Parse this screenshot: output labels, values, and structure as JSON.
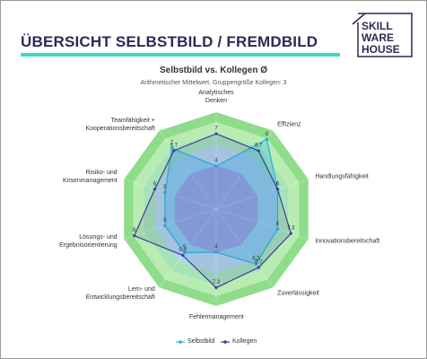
{
  "header": {
    "title": "ÜBERSICHT SELBSTBILD / FREMDBILD",
    "logo": [
      "SKILL",
      "WARE",
      "HOUSE"
    ]
  },
  "chart_data": {
    "type": "radar",
    "title": "Selbstbild vs. Kollegen Ø",
    "subtitle": "Arithmetischer Mittelwert. Gruppengröße Kollegen: 3",
    "categories": [
      "Analytisches Denken",
      "Effizienz",
      "Handlungsfähigkeit",
      "Innovationsbereitschaft",
      "Zuverlässigkeit",
      "Fehlermanagement",
      "Lern- und Entwicklungsbereitschaft",
      "Lösungs- und Ergebnisorientierung",
      "Risiko- und Krisenmanagement",
      "Teamfähigkeit + Kooperationsbereitschaft"
    ],
    "rlim": [
      0,
      9
    ],
    "series": [
      {
        "name": "Selbstbild",
        "color": "#2bb3e3",
        "values": [
          4,
          8,
          6,
          6,
          6.3,
          4,
          5,
          5,
          5,
          7
        ]
      },
      {
        "name": "Kollegen",
        "color": "#3b3a9a",
        "values": [
          7,
          6.7,
          6,
          7.3,
          6.7,
          7.3,
          5.3,
          8,
          6,
          6.7
        ]
      }
    ],
    "legend": "bottom"
  }
}
